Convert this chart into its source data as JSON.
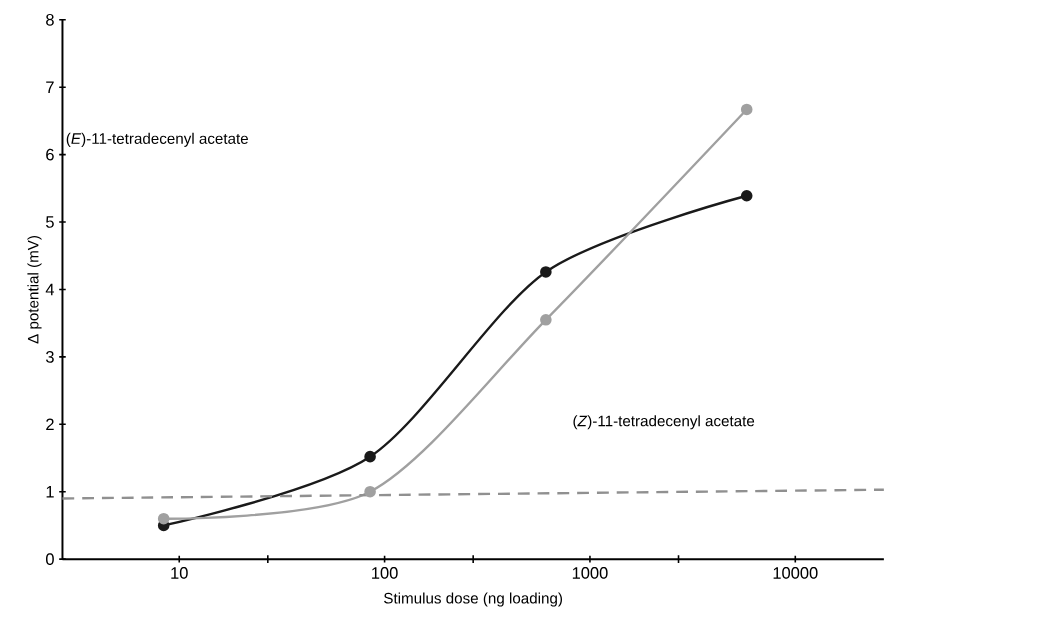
{
  "chart_data": {
    "type": "line",
    "xlabel": "Stimulus dose (ng loading)",
    "ylabel": "Δ potential (mV)",
    "log": "x",
    "xlim": [
      2.7,
      27000
    ],
    "ylim": [
      0,
      8
    ],
    "xticks": [
      {
        "value": 10,
        "label": "10"
      },
      {
        "value": 100,
        "label": "100"
      },
      {
        "value": 1000,
        "label": "1000"
      },
      {
        "value": 10000,
        "label": "10000"
      },
      {
        "value": 27,
        "label": null
      },
      {
        "value": 270,
        "label": null
      },
      {
        "value": 2700,
        "label": null
      }
    ],
    "yticks": [
      0,
      1,
      2,
      3,
      4,
      5,
      6,
      7,
      8
    ],
    "grid": false,
    "marker": "circle",
    "line_style": "solid",
    "series": [
      {
        "color": "#1a1a1a",
        "x": [
          8.4,
          85,
          610,
          5800
        ],
        "values": [
          0.5,
          1.52,
          4.26,
          5.39
        ]
      },
      {
        "color": "#a0a0a0",
        "x": [
          8.4,
          85,
          610,
          5800
        ],
        "values": [
          0.6,
          1.0,
          3.55,
          6.67
        ]
      },
      {
        "color": "#909090",
        "x": [
          2.7,
          27000
        ],
        "values": [
          0.9,
          1.03
        ],
        "marker": "none",
        "line_style": "dashed"
      }
    ],
    "annotations": [
      "(*E*)-11-tetradecenyl acetate",
      "(*Z*)-11-tetradecenyl acetate"
    ]
  }
}
